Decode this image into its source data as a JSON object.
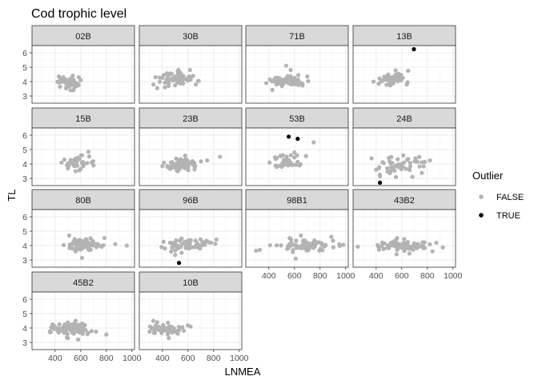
{
  "chart_data": {
    "type": "scatter",
    "title": "Cod trophic level",
    "xlabel": "LNMEA",
    "ylabel": "TL",
    "xlim": [
      220,
      1020
    ],
    "ylim": [
      2.5,
      6.5
    ],
    "xticks": [
      400,
      600,
      800,
      1000
    ],
    "yticks": [
      3,
      4,
      5,
      6
    ],
    "grid": true,
    "legend": {
      "title": "Outlier",
      "position": "right",
      "entries": [
        {
          "label": "FALSE",
          "color": "#b3b3b3"
        },
        {
          "label": "TRUE",
          "color": "#000000"
        }
      ]
    },
    "colors": {
      "FALSE": "#b3b3b3",
      "TRUE": "#000000",
      "strip": "#d9d9d9",
      "grid": "#ebebeb"
    },
    "panels": [
      {
        "name": "02B",
        "normal": {
          "n": 55,
          "cx": 505,
          "sx": 38,
          "cy": 3.95,
          "sy": 0.22
        },
        "points": [
          [
            430,
            4.35
          ],
          [
            470,
            4.05
          ],
          [
            520,
            3.4
          ],
          [
            585,
            4.3
          ],
          [
            560,
            3.85
          ],
          [
            600,
            4.1
          ]
        ],
        "outliers": []
      },
      {
        "name": "30B",
        "normal": {
          "n": 65,
          "cx": 500,
          "sx": 70,
          "cy": 4.2,
          "sy": 0.25
        },
        "points": [
          [
            330,
            3.8
          ],
          [
            360,
            3.55
          ],
          [
            420,
            3.6
          ],
          [
            640,
            4.4
          ],
          [
            680,
            4.05
          ],
          [
            530,
            4.7
          ]
        ],
        "outliers": []
      },
      {
        "name": "71B",
        "normal": {
          "n": 70,
          "cx": 540,
          "sx": 75,
          "cy": 4.05,
          "sy": 0.18
        },
        "points": [
          [
            535,
            5.1
          ],
          [
            570,
            4.8
          ],
          [
            630,
            4.45
          ],
          [
            700,
            4.35
          ],
          [
            380,
            3.9
          ]
        ],
        "outliers": []
      },
      {
        "name": "13B",
        "normal": {
          "n": 55,
          "cx": 530,
          "sx": 55,
          "cy": 4.2,
          "sy": 0.2
        },
        "points": [
          [
            420,
            3.85
          ],
          [
            440,
            4.0
          ],
          [
            650,
            4.75
          ],
          [
            640,
            3.8
          ]
        ],
        "outliers": [
          [
            695,
            6.25
          ]
        ]
      },
      {
        "name": "15B",
        "normal": {
          "n": 45,
          "cx": 560,
          "sx": 50,
          "cy": 4.05,
          "sy": 0.22
        },
        "points": [
          [
            660,
            4.85
          ],
          [
            610,
            4.6
          ],
          [
            700,
            3.9
          ],
          [
            500,
            3.7
          ],
          [
            560,
            3.5
          ]
        ],
        "outliers": []
      },
      {
        "name": "23B",
        "normal": {
          "n": 85,
          "cx": 560,
          "sx": 65,
          "cy": 4.0,
          "sy": 0.2
        },
        "points": [
          [
            850,
            4.5
          ],
          [
            750,
            4.25
          ],
          [
            400,
            3.85
          ],
          [
            440,
            3.8
          ],
          [
            470,
            3.75
          ],
          [
            520,
            3.5
          ]
        ],
        "outliers": []
      },
      {
        "name": "53B",
        "normal": {
          "n": 40,
          "cx": 530,
          "sx": 50,
          "cy": 4.15,
          "sy": 0.25
        },
        "points": [
          [
            690,
            4.55
          ],
          [
            750,
            5.5
          ],
          [
            460,
            3.8
          ],
          [
            600,
            4.8
          ],
          [
            640,
            3.9
          ],
          [
            620,
            4.6
          ]
        ],
        "outliers": [
          [
            555,
            5.9
          ],
          [
            625,
            5.75
          ]
        ]
      },
      {
        "name": "24B",
        "normal": {
          "n": 50,
          "cx": 570,
          "sx": 100,
          "cy": 3.9,
          "sy": 0.32
        },
        "points": [
          [
            820,
            4.25
          ],
          [
            780,
            4.15
          ],
          [
            400,
            3.6
          ],
          [
            430,
            3.15
          ],
          [
            420,
            3.7
          ]
        ],
        "outliers": [
          [
            430,
            2.7
          ]
        ]
      },
      {
        "name": "80B",
        "normal": {
          "n": 80,
          "cx": 630,
          "sx": 65,
          "cy": 4.05,
          "sy": 0.2
        },
        "points": [
          [
            870,
            4.1
          ],
          [
            960,
            4.0
          ],
          [
            510,
            4.7
          ],
          [
            610,
            3.15
          ],
          [
            560,
            3.6
          ]
        ],
        "outliers": []
      },
      {
        "name": "96B",
        "normal": {
          "n": 60,
          "cx": 610,
          "sx": 90,
          "cy": 4.05,
          "sy": 0.2
        },
        "points": [
          [
            420,
            3.8
          ],
          [
            750,
            4.3
          ],
          [
            780,
            4.2
          ],
          [
            500,
            3.35
          ],
          [
            550,
            3.5
          ]
        ],
        "outliers": [
          [
            530,
            2.8
          ]
        ]
      },
      {
        "name": "98B1",
        "normal": {
          "n": 75,
          "cx": 670,
          "sx": 110,
          "cy": 4.0,
          "sy": 0.2
        },
        "points": [
          [
            300,
            3.65
          ],
          [
            330,
            3.7
          ],
          [
            950,
            4.1
          ],
          [
            980,
            4.05
          ],
          [
            610,
            3.1
          ],
          [
            650,
            4.7
          ]
        ],
        "outliers": []
      },
      {
        "name": "43B2",
        "normal": {
          "n": 75,
          "cx": 620,
          "sx": 100,
          "cy": 4.0,
          "sy": 0.18
        },
        "points": [
          [
            420,
            3.9
          ],
          [
            870,
            4.2
          ],
          [
            840,
            3.6
          ],
          [
            620,
            4.45
          ],
          [
            660,
            3.45
          ],
          [
            560,
            3.4
          ]
        ],
        "outliers": []
      },
      {
        "name": "45B2",
        "normal": {
          "n": 85,
          "cx": 540,
          "sx": 70,
          "cy": 3.9,
          "sy": 0.2
        },
        "points": [
          [
            380,
            4.25
          ],
          [
            360,
            3.7
          ],
          [
            800,
            3.55
          ],
          [
            720,
            3.75
          ],
          [
            560,
            4.5
          ],
          [
            500,
            3.3
          ],
          [
            580,
            3.2
          ]
        ],
        "outliers": []
      },
      {
        "name": "10B",
        "normal": {
          "n": 70,
          "cx": 420,
          "sx": 60,
          "cy": 3.95,
          "sy": 0.18
        },
        "points": [
          [
            330,
            4.5
          ],
          [
            360,
            4.4
          ],
          [
            300,
            3.75
          ],
          [
            620,
            4.1
          ],
          [
            520,
            3.6
          ],
          [
            450,
            3.3
          ]
        ],
        "outliers": []
      }
    ]
  }
}
